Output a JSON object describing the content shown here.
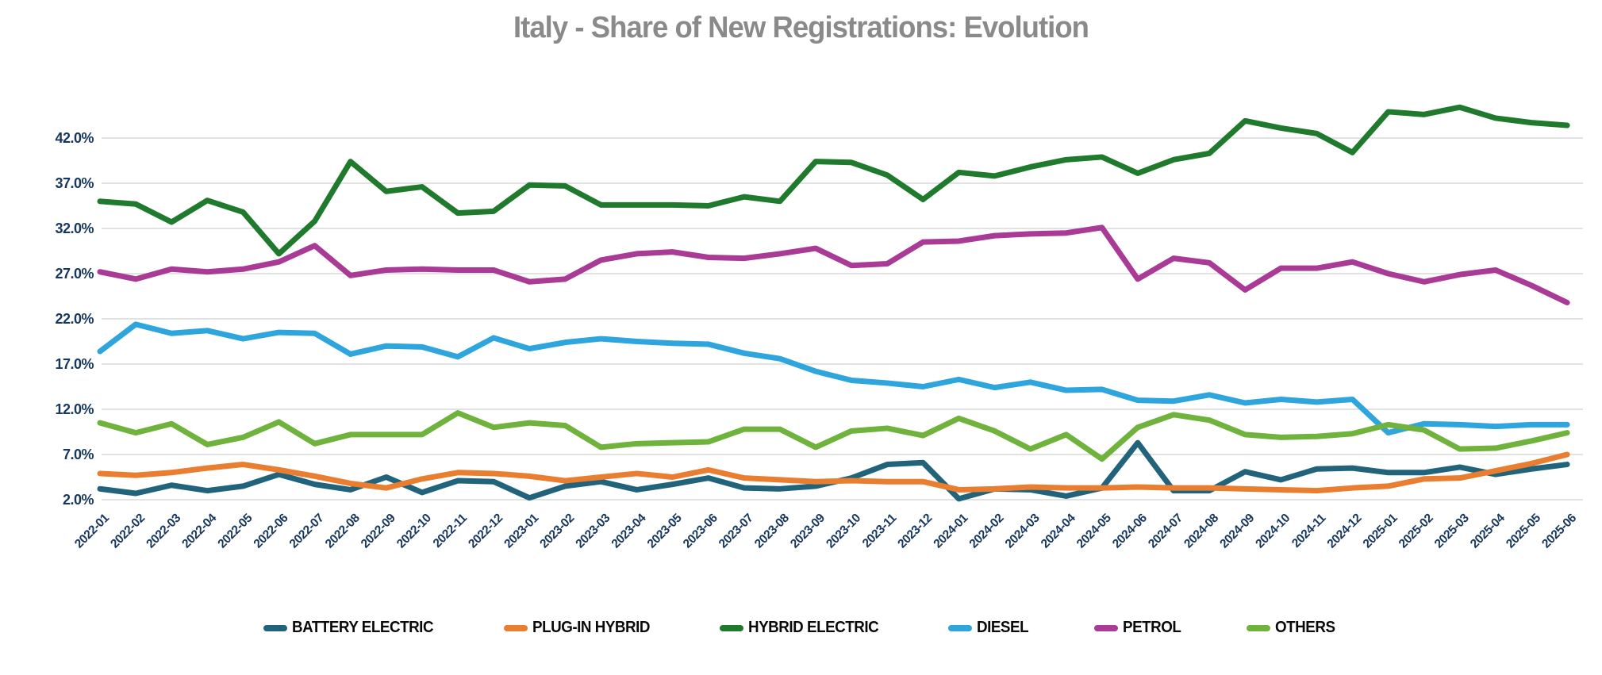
{
  "chart_data": {
    "type": "line",
    "title": "Italy - Share of New Registrations: Evolution",
    "xlabel": "",
    "ylabel": "",
    "ylim": [
      2,
      46
    ],
    "y_ticks": [
      42,
      37,
      32,
      27,
      22,
      17,
      12,
      7,
      2
    ],
    "y_tick_suffix": "%",
    "grid": "horizontal",
    "legend_position": "bottom",
    "x": [
      "2022-01",
      "2022-02",
      "2022-03",
      "2022-04",
      "2022-05",
      "2022-06",
      "2022-07",
      "2022-08",
      "2022-09",
      "2022-10",
      "2022-11",
      "2022-12",
      "2023-01",
      "2023-02",
      "2023-03",
      "2023-04",
      "2023-05",
      "2023-06",
      "2023-07",
      "2023-08",
      "2023-09",
      "2023-10",
      "2023-11",
      "2023-12",
      "2024-01",
      "2024-02",
      "2024-03",
      "2024-04",
      "2024-05",
      "2024-06",
      "2024-07",
      "2024-08",
      "2024-09",
      "2024-10",
      "2024-11",
      "2024-12",
      "2025-01",
      "2025-02",
      "2025-03",
      "2025-04",
      "2025-05",
      "2025-06"
    ],
    "series": [
      {
        "name": "BATTERY ELECTRIC",
        "color": "#21637b",
        "values": [
          3.2,
          2.7,
          3.6,
          3.0,
          3.5,
          4.8,
          3.7,
          3.1,
          4.5,
          2.8,
          4.1,
          4.0,
          2.2,
          3.5,
          4.0,
          3.1,
          3.7,
          4.4,
          3.3,
          3.2,
          3.5,
          4.4,
          5.9,
          6.1,
          2.1,
          3.2,
          3.1,
          2.4,
          3.3,
          8.3,
          3.0,
          3.0,
          5.1,
          4.2,
          5.4,
          5.5,
          5.0,
          5.0,
          5.6,
          4.8,
          5.4,
          5.9
        ]
      },
      {
        "name": "PLUG-IN HYBRID",
        "color": "#ea7e30",
        "values": [
          4.9,
          4.7,
          5.0,
          5.5,
          5.9,
          5.3,
          4.6,
          3.8,
          3.3,
          4.3,
          5.0,
          4.9,
          4.6,
          4.1,
          4.5,
          4.9,
          4.5,
          5.3,
          4.4,
          4.2,
          4.0,
          4.1,
          4.0,
          4.0,
          3.1,
          3.2,
          3.4,
          3.3,
          3.3,
          3.4,
          3.3,
          3.3,
          3.2,
          3.1,
          3.0,
          3.3,
          3.5,
          4.3,
          4.4,
          5.2,
          6.0,
          7.0
        ]
      },
      {
        "name": "HYBRID ELECTRIC",
        "color": "#1f7a2d",
        "values": [
          35.0,
          34.7,
          32.7,
          35.1,
          33.8,
          29.2,
          32.8,
          39.4,
          36.1,
          36.6,
          33.7,
          33.9,
          36.8,
          36.7,
          34.6,
          34.6,
          34.6,
          34.5,
          35.5,
          35.0,
          39.4,
          39.3,
          37.9,
          35.2,
          38.2,
          37.8,
          38.8,
          39.6,
          39.9,
          38.1,
          39.6,
          40.3,
          43.9,
          43.1,
          42.5,
          40.4,
          44.9,
          44.6,
          45.4,
          44.2,
          43.7,
          43.4
        ]
      },
      {
        "name": "DIESEL",
        "color": "#2ea5dc",
        "values": [
          18.4,
          21.4,
          20.4,
          20.7,
          19.8,
          20.5,
          20.4,
          18.1,
          19.0,
          18.9,
          17.8,
          19.9,
          18.7,
          19.4,
          19.8,
          19.5,
          19.3,
          19.2,
          18.2,
          17.6,
          16.2,
          15.2,
          14.9,
          14.5,
          15.3,
          14.4,
          15.0,
          14.1,
          14.2,
          13.0,
          12.9,
          13.6,
          12.7,
          13.1,
          12.8,
          13.1,
          9.4,
          10.4,
          10.3,
          10.1,
          10.3,
          10.3
        ]
      },
      {
        "name": "PETROL",
        "color": "#a93a96",
        "values": [
          27.2,
          26.4,
          27.5,
          27.2,
          27.5,
          28.3,
          30.1,
          26.8,
          27.4,
          27.5,
          27.4,
          27.4,
          26.1,
          26.4,
          28.5,
          29.2,
          29.4,
          28.8,
          28.7,
          29.2,
          29.8,
          27.9,
          28.1,
          30.5,
          30.6,
          31.2,
          31.4,
          31.5,
          32.1,
          26.4,
          28.7,
          28.2,
          25.2,
          27.6,
          27.6,
          28.3,
          27.0,
          26.1,
          26.9,
          27.4,
          25.7,
          23.8
        ]
      },
      {
        "name": "OTHERS",
        "color": "#6fb33c",
        "values": [
          10.5,
          9.4,
          10.4,
          8.1,
          8.9,
          10.6,
          8.2,
          9.2,
          9.2,
          9.2,
          11.6,
          10.0,
          10.5,
          10.2,
          7.8,
          8.2,
          8.3,
          8.4,
          9.8,
          9.8,
          7.8,
          9.6,
          9.9,
          9.1,
          11.0,
          9.6,
          7.6,
          9.2,
          6.5,
          10.0,
          11.4,
          10.8,
          9.2,
          8.9,
          9.0,
          9.3,
          10.3,
          9.7,
          7.6,
          7.7,
          8.5,
          9.4
        ]
      }
    ],
    "styles": {
      "title_color": "#8a8a8a",
      "axis_label_color": "#17375e",
      "gridline_color": "#d9d9d9",
      "legend_text_color": "#0a0a0a",
      "background": "#ffffff"
    }
  }
}
